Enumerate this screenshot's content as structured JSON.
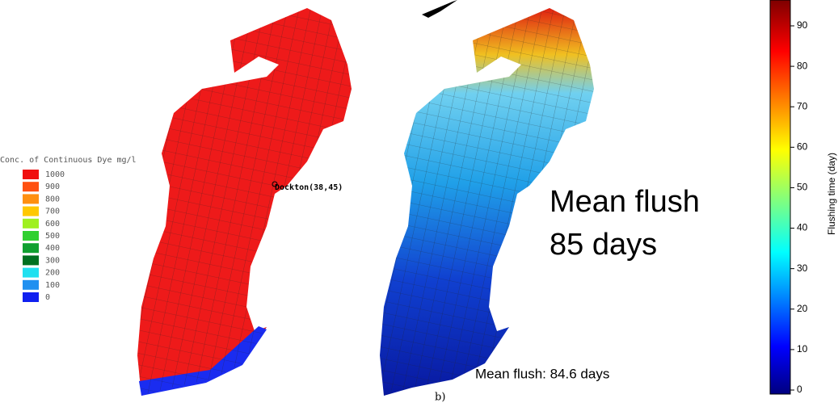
{
  "dye_legend": {
    "title": "Conc. of Continuous Dye mg/l",
    "items": [
      {
        "label": "1000",
        "color": "#f01010"
      },
      {
        "label": "900",
        "color": "#ff5010"
      },
      {
        "label": "800",
        "color": "#ff9010"
      },
      {
        "label": "700",
        "color": "#ffc800"
      },
      {
        "label": "600",
        "color": "#a0f020"
      },
      {
        "label": "500",
        "color": "#30d030"
      },
      {
        "label": "400",
        "color": "#10a030"
      },
      {
        "label": "300",
        "color": "#007020"
      },
      {
        "label": "200",
        "color": "#20e0f0"
      },
      {
        "label": "100",
        "color": "#2090f0"
      },
      {
        "label": "0",
        "color": "#1020f0"
      }
    ]
  },
  "station_label": "Dockton(38,45)",
  "panel_label": "b)",
  "model_result": "Mean flush: 84.6 days",
  "callout": [
    "Mean flush",
    "85 days"
  ],
  "colorbar": {
    "label": "Flushing time (day)",
    "ticks": [
      0,
      10,
      20,
      30,
      40,
      50,
      60,
      70,
      80,
      90
    ]
  }
}
